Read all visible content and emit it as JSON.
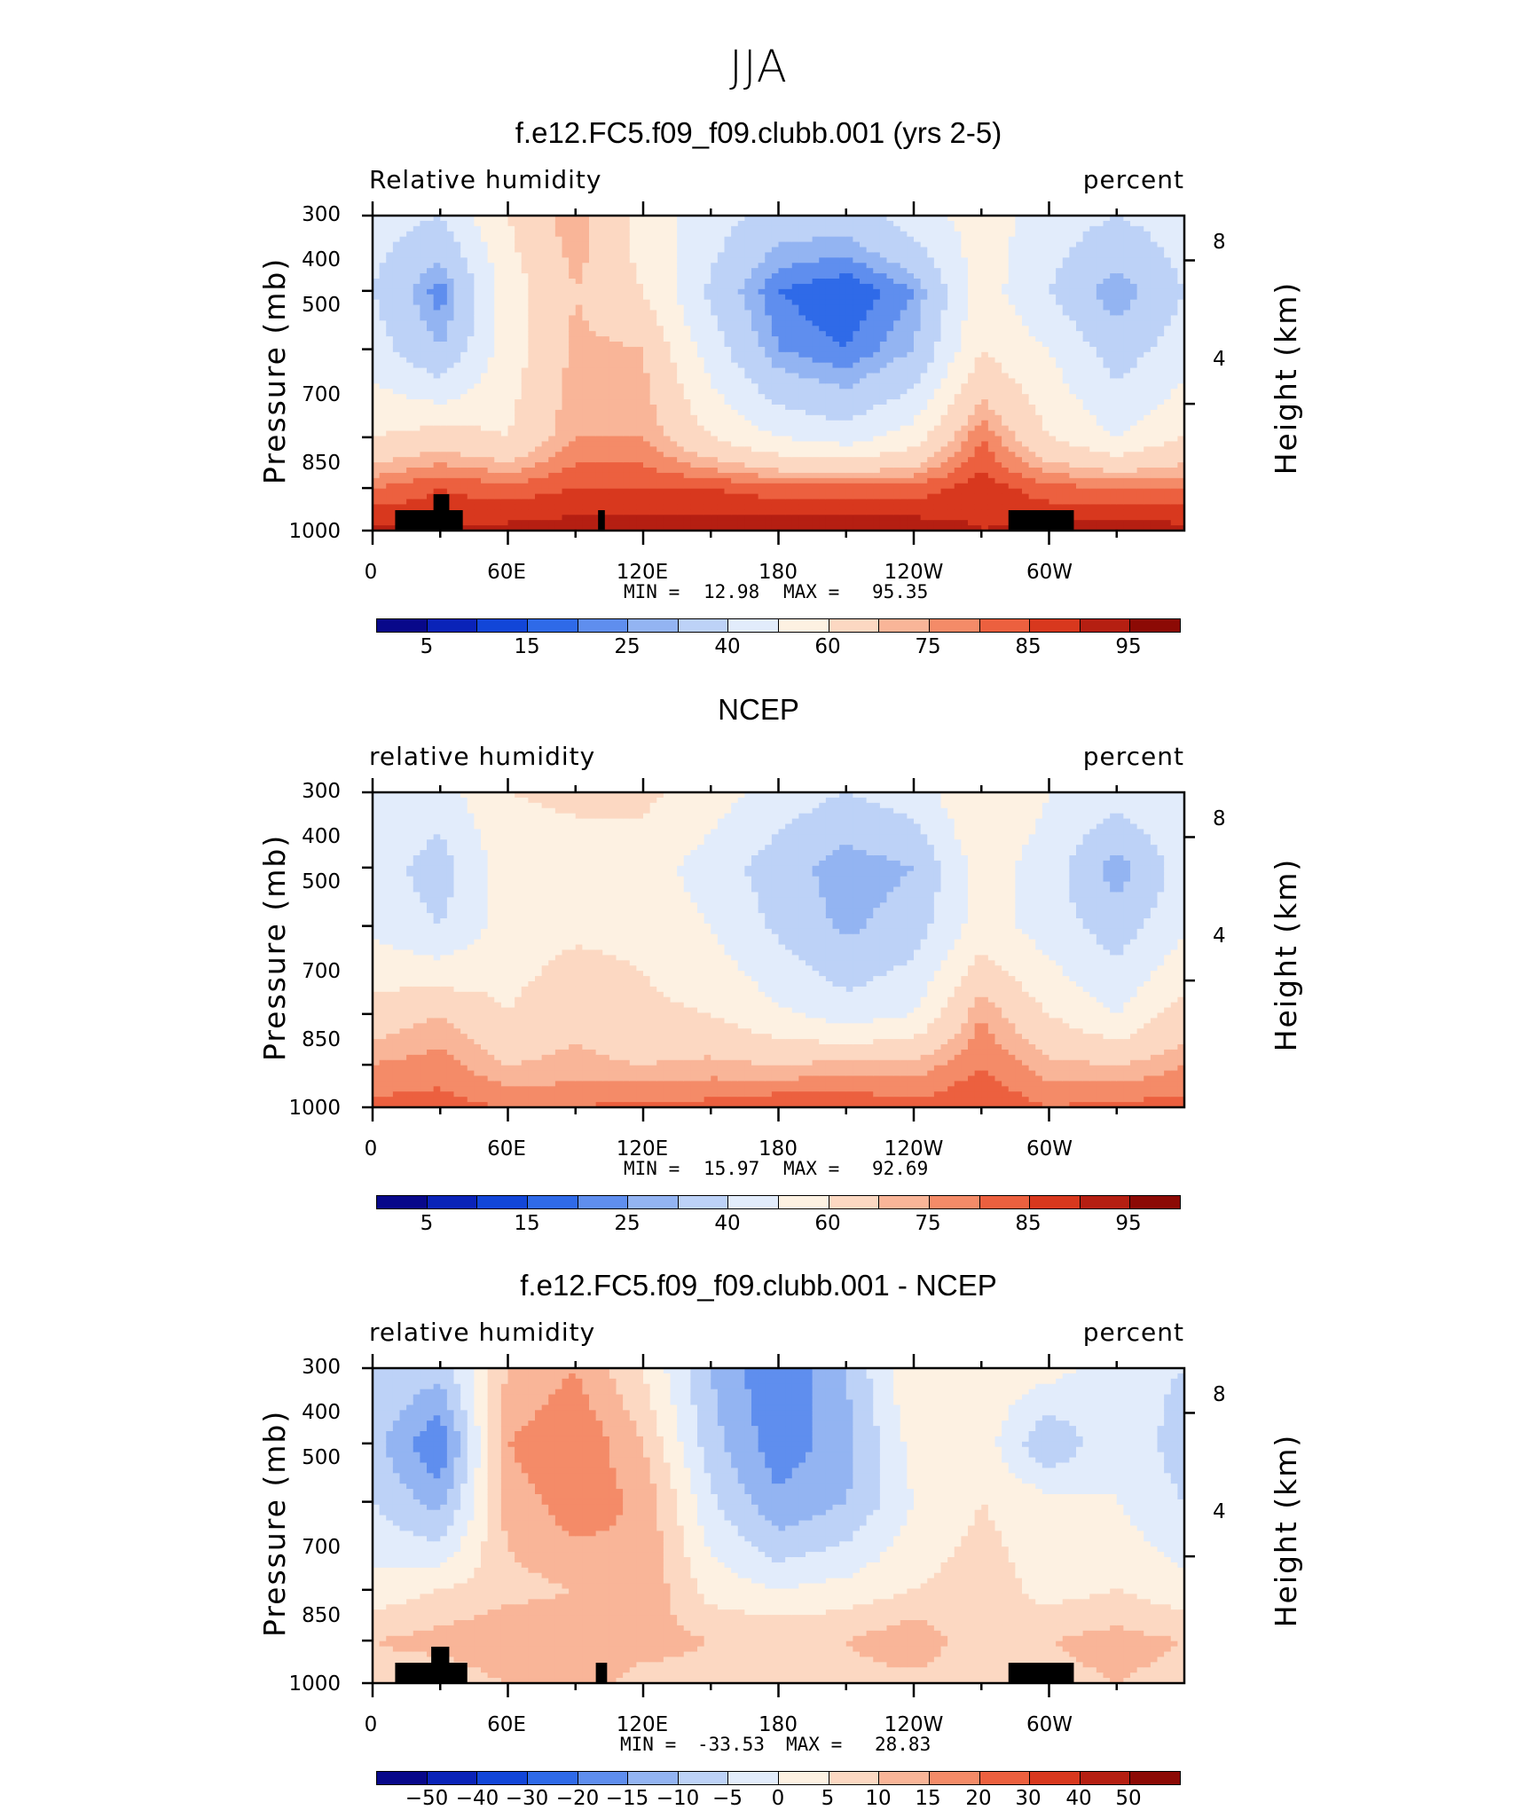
{
  "page_title": "JJA",
  "colors": {
    "scale": [
      "#08088a",
      "#0a23b8",
      "#1246d8",
      "#2f6ae8",
      "#5f8eee",
      "#93b4f2",
      "#bdd2f7",
      "#e2ecfb",
      "#fdf1e2",
      "#fcd8c2",
      "#f9b598",
      "#f48b68",
      "#ec603f",
      "#d8381e",
      "#b51f12",
      "#8c0a05"
    ],
    "land": "#000000"
  },
  "labels": {
    "pressure_axis": "Pressure (mb)",
    "height_axis": "Height (km)",
    "pressure_ticks": [
      "300",
      "400",
      "500",
      "700",
      "850",
      "1000"
    ],
    "height_ticks": [
      "8",
      "4"
    ],
    "lon_ticks": [
      "0",
      "60E",
      "120E",
      "180",
      "120W",
      "60W"
    ]
  },
  "panels": [
    {
      "title": "f.e12.FC5.f09_f09.clubb.001 (yrs 2-5)",
      "left_label": "Relative humidity",
      "right_label": "percent",
      "min_label": "MIN =",
      "min_value": "12.98",
      "max_label": "MAX =",
      "max_value": "95.35",
      "colorbar_labels": [
        "5",
        "15",
        "25",
        "40",
        "60",
        "75",
        "85",
        "95"
      ]
    },
    {
      "title": "NCEP",
      "left_label": "relative humidity",
      "right_label": "percent",
      "min_label": "MIN =",
      "min_value": "15.97",
      "max_label": "MAX =",
      "max_value": "92.69",
      "colorbar_labels": [
        "5",
        "15",
        "25",
        "40",
        "60",
        "75",
        "85",
        "95"
      ]
    },
    {
      "title": "f.e12.FC5.f09_f09.clubb.001 - NCEP",
      "left_label": "relative humidity",
      "right_label": "percent",
      "min_label": "MIN =",
      "min_value": "-33.53",
      "max_label": "MAX =",
      "max_value": "28.83",
      "colorbar_labels": [
        "−50",
        "−40",
        "−30",
        "−20",
        "−15",
        "−10",
        "−5",
        "0",
        "5",
        "10",
        "15",
        "20",
        "30",
        "40",
        "50"
      ]
    }
  ],
  "chart_data": [
    {
      "type": "heatmap",
      "title": "f.e12.FC5.f09_f09.clubb.001 (yrs 2-5)",
      "subtitle": "Relative humidity",
      "units": "percent",
      "xlabel": "",
      "ylabel": "Pressure (mb)",
      "y2label": "Height (km)",
      "x_ticks": [
        "0",
        "60E",
        "120E",
        "180",
        "120W",
        "60W"
      ],
      "y_ticks": [
        300,
        400,
        500,
        700,
        850,
        1000
      ],
      "ylim": [
        1000,
        300
      ],
      "levels": [
        5,
        10,
        15,
        20,
        25,
        30,
        40,
        50,
        60,
        70,
        75,
        80,
        85,
        90,
        95
      ],
      "min": 12.98,
      "max": 95.35,
      "x": [
        0,
        30,
        60,
        90,
        120,
        150,
        180,
        210,
        240,
        270,
        300,
        330,
        360
      ],
      "y": [
        300,
        400,
        500,
        700,
        850,
        1000
      ],
      "z": [
        [
          45,
          40,
          60,
          75,
          55,
          45,
          35,
          35,
          45,
          55,
          45,
          40,
          45
        ],
        [
          40,
          22,
          55,
          70,
          60,
          38,
          20,
          15,
          25,
          55,
          40,
          25,
          40
        ],
        [
          45,
          30,
          55,
          72,
          70,
          45,
          25,
          20,
          30,
          60,
          50,
          35,
          45
        ],
        [
          60,
          65,
          60,
          75,
          75,
          60,
          50,
          45,
          55,
          80,
          60,
          50,
          60
        ],
        [
          80,
          85,
          82,
          85,
          85,
          85,
          82,
          82,
          82,
          88,
          82,
          80,
          80
        ],
        [
          92,
          90,
          92,
          93,
          93,
          94,
          94,
          94,
          94,
          90,
          92,
          94,
          92
        ]
      ]
    },
    {
      "type": "heatmap",
      "title": "NCEP",
      "subtitle": "relative humidity",
      "units": "percent",
      "xlabel": "",
      "ylabel": "Pressure (mb)",
      "y2label": "Height (km)",
      "x_ticks": [
        "0",
        "60E",
        "120E",
        "180",
        "120W",
        "60W"
      ],
      "y_ticks": [
        300,
        400,
        500,
        700,
        850,
        1000
      ],
      "ylim": [
        1000,
        300
      ],
      "levels": [
        5,
        10,
        15,
        20,
        25,
        30,
        40,
        50,
        60,
        70,
        75,
        80,
        85,
        90,
        95
      ],
      "min": 15.97,
      "max": 92.69,
      "x": [
        0,
        30,
        60,
        90,
        120,
        150,
        180,
        210,
        240,
        270,
        300,
        330,
        360
      ],
      "y": [
        300,
        400,
        500,
        700,
        850,
        1000
      ],
      "z": [
        [
          50,
          45,
          60,
          62,
          62,
          55,
          45,
          40,
          45,
          60,
          50,
          45,
          50
        ],
        [
          45,
          35,
          55,
          55,
          55,
          45,
          35,
          25,
          30,
          55,
          45,
          25,
          45
        ],
        [
          48,
          40,
          55,
          58,
          58,
          50,
          38,
          28,
          35,
          55,
          45,
          35,
          48
        ],
        [
          65,
          70,
          60,
          68,
          62,
          60,
          52,
          45,
          50,
          75,
          60,
          50,
          65
        ],
        [
          75,
          78,
          70,
          72,
          70,
          72,
          70,
          72,
          72,
          80,
          72,
          70,
          75
        ],
        [
          82,
          82,
          80,
          80,
          82,
          82,
          85,
          85,
          82,
          85,
          80,
          82,
          82
        ]
      ]
    },
    {
      "type": "heatmap",
      "title": "f.e12.FC5.f09_f09.clubb.001 - NCEP",
      "subtitle": "relative humidity",
      "units": "percent",
      "xlabel": "",
      "ylabel": "Pressure (mb)",
      "y2label": "Height (km)",
      "x_ticks": [
        "0",
        "60E",
        "120E",
        "180",
        "120W",
        "60W"
      ],
      "y_ticks": [
        300,
        400,
        500,
        700,
        850,
        1000
      ],
      "ylim": [
        1000,
        300
      ],
      "levels": [
        -50,
        -40,
        -30,
        -20,
        -15,
        -10,
        -5,
        0,
        5,
        10,
        15,
        20,
        30,
        40,
        50
      ],
      "min": -33.53,
      "max": 28.83,
      "x": [
        0,
        30,
        60,
        90,
        120,
        150,
        180,
        210,
        240,
        270,
        300,
        330,
        360
      ],
      "y": [
        300,
        400,
        500,
        700,
        850,
        1000
      ],
      "z": [
        [
          -5,
          -8,
          10,
          15,
          5,
          -10,
          -20,
          -10,
          5,
          3,
          2,
          -3,
          -5
        ],
        [
          -8,
          -20,
          15,
          20,
          10,
          -8,
          -18,
          -12,
          2,
          3,
          -10,
          0,
          -8
        ],
        [
          -5,
          -12,
          12,
          18,
          14,
          -4,
          -14,
          -10,
          0,
          5,
          2,
          0,
          -5
        ],
        [
          2,
          5,
          8,
          10,
          14,
          3,
          0,
          2,
          5,
          8,
          3,
          5,
          2
        ],
        [
          10,
          12,
          15,
          15,
          12,
          10,
          10,
          10,
          14,
          6,
          10,
          12,
          10
        ],
        [
          8,
          6,
          10,
          12,
          8,
          8,
          6,
          8,
          8,
          6,
          8,
          10,
          8
        ]
      ]
    }
  ]
}
